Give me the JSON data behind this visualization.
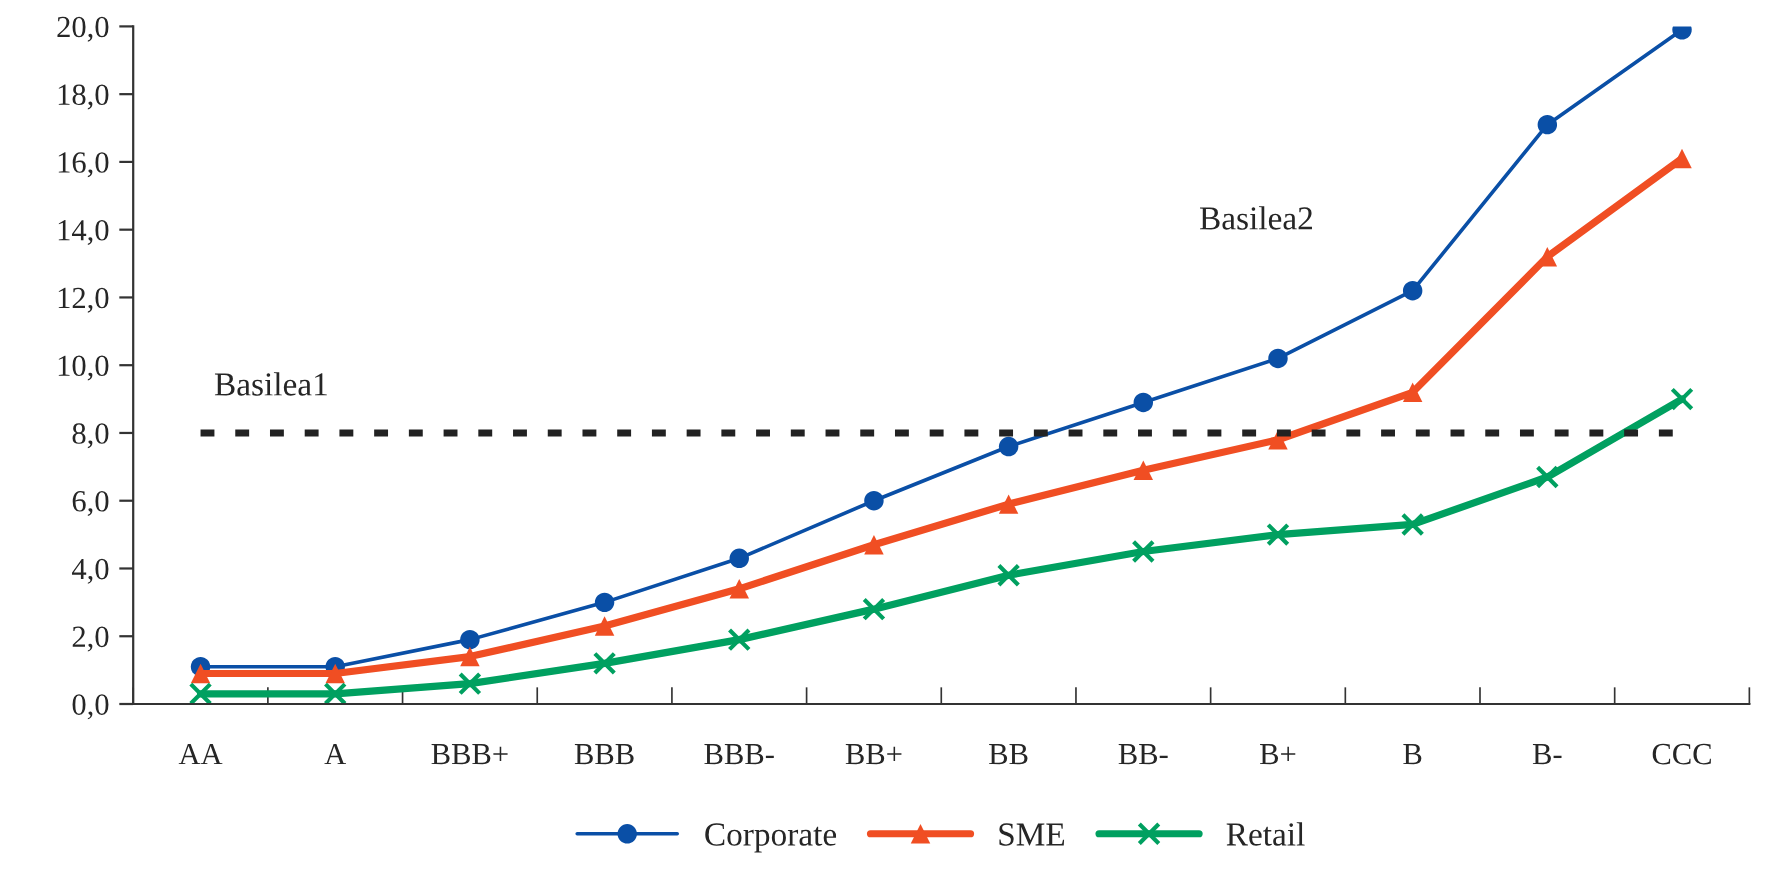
{
  "chart_data": {
    "type": "line",
    "categories": [
      "AA",
      "A",
      "BBB+",
      "BBB",
      "BBB-",
      "BB+",
      "BB",
      "BB-",
      "B+",
      "B",
      "B-",
      "CCC"
    ],
    "series": [
      {
        "name": "Corporate",
        "color": "#0a4fa6",
        "marker": "circle",
        "values": [
          1.1,
          1.1,
          1.9,
          3.0,
          4.3,
          6.0,
          7.6,
          8.9,
          10.2,
          12.2,
          17.1,
          19.9
        ]
      },
      {
        "name": "SME",
        "color": "#f04e23",
        "marker": "triangle",
        "values": [
          0.9,
          0.9,
          1.4,
          2.3,
          3.4,
          4.7,
          5.9,
          6.9,
          7.8,
          9.2,
          13.2,
          16.1
        ]
      },
      {
        "name": "Retail",
        "color": "#00a060",
        "marker": "cross",
        "values": [
          0.3,
          0.3,
          0.6,
          1.2,
          1.9,
          2.8,
          3.8,
          4.5,
          5.0,
          5.3,
          6.7,
          9.0
        ]
      }
    ],
    "ylim": [
      0,
      20
    ],
    "yticks": [
      {
        "value": 0,
        "label": "0,0"
      },
      {
        "value": 2,
        "label": "2,0"
      },
      {
        "value": 4,
        "label": "4,0"
      },
      {
        "value": 6,
        "label": "6,0"
      },
      {
        "value": 8,
        "label": "8,0"
      },
      {
        "value": 10,
        "label": "10,0"
      },
      {
        "value": 12,
        "label": "12,0"
      },
      {
        "value": 14,
        "label": "14,0"
      },
      {
        "value": 16,
        "label": "16,0"
      },
      {
        "value": 18,
        "label": "18,0"
      },
      {
        "value": 20,
        "label": "20,0"
      }
    ],
    "ref_lines": [
      {
        "axis": "y",
        "value": 8,
        "label": "Basilea1",
        "color": "#222222",
        "line_style": "dotted"
      }
    ],
    "annotations": [
      "Basilea2"
    ],
    "legend": "bottom",
    "grid": false
  }
}
